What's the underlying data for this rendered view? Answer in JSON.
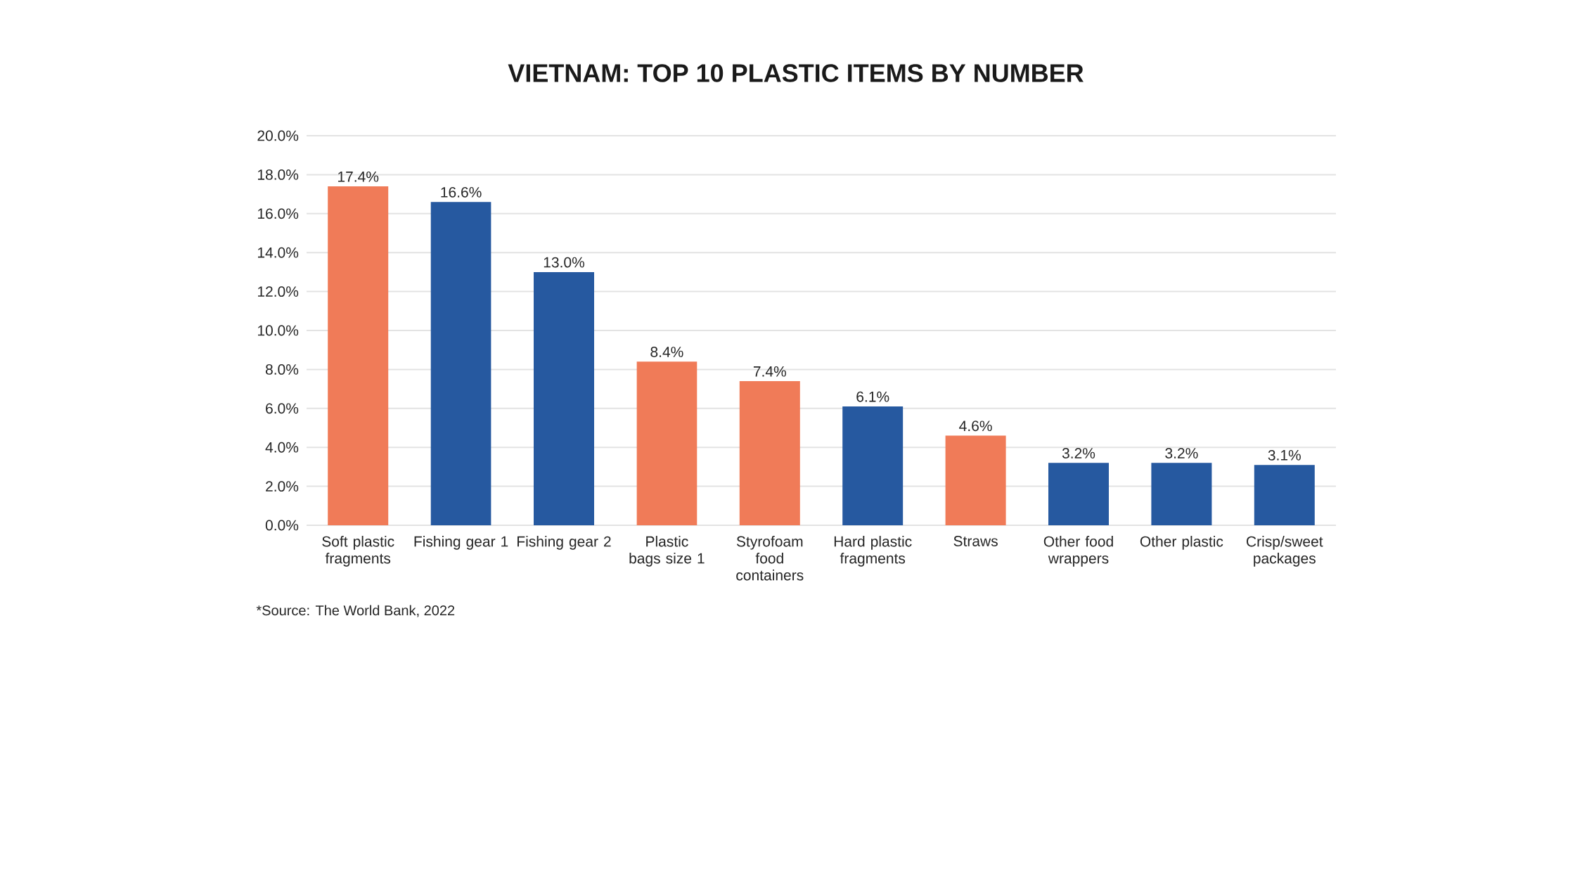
{
  "chart_data": {
    "type": "bar",
    "title": "VIETNAM: TOP 10 PLASTIC ITEMS BY NUMBER",
    "categories": [
      "Soft plastic fragments",
      "Fishing gear 1",
      "Fishing gear 2",
      "Plastic bags size 1",
      "Styrofoam food containers",
      "Hard plastic fragments",
      "Straws",
      "Other food wrappers",
      "Other plastic",
      "Crisp/sweet packages"
    ],
    "values": [
      17.4,
      16.6,
      13.0,
      8.4,
      7.4,
      6.1,
      4.6,
      3.2,
      3.2,
      3.1
    ],
    "colors": [
      "#f07b58",
      "#2659a0",
      "#2659a0",
      "#f07b58",
      "#f07b58",
      "#2659a0",
      "#f07b58",
      "#2659a0",
      "#2659a0",
      "#2659a0"
    ],
    "value_labels": [
      "17.4%",
      "16.6%",
      "13.0%",
      "8.4%",
      "7.4%",
      "6.1%",
      "4.6%",
      "3.2%",
      "3.2%",
      "3.1%"
    ],
    "ylim": [
      0,
      20
    ],
    "yticks": [
      {
        "value": 0,
        "label": "0.0%"
      },
      {
        "value": 2,
        "label": "2.0%"
      },
      {
        "value": 4,
        "label": "4.0%"
      },
      {
        "value": 6,
        "label": "6.0%"
      },
      {
        "value": 8,
        "label": "8.0%"
      },
      {
        "value": 10,
        "label": "10.0%"
      },
      {
        "value": 12,
        "label": "12.0%"
      },
      {
        "value": 14,
        "label": "14.0%"
      },
      {
        "value": 16,
        "label": "16.0%"
      },
      {
        "value": 18,
        "label": "18.0%"
      },
      {
        "value": 20,
        "label": "20.0%"
      }
    ],
    "grid": "y",
    "annotations": [
      "*Source: The World Bank, 2022"
    ]
  }
}
